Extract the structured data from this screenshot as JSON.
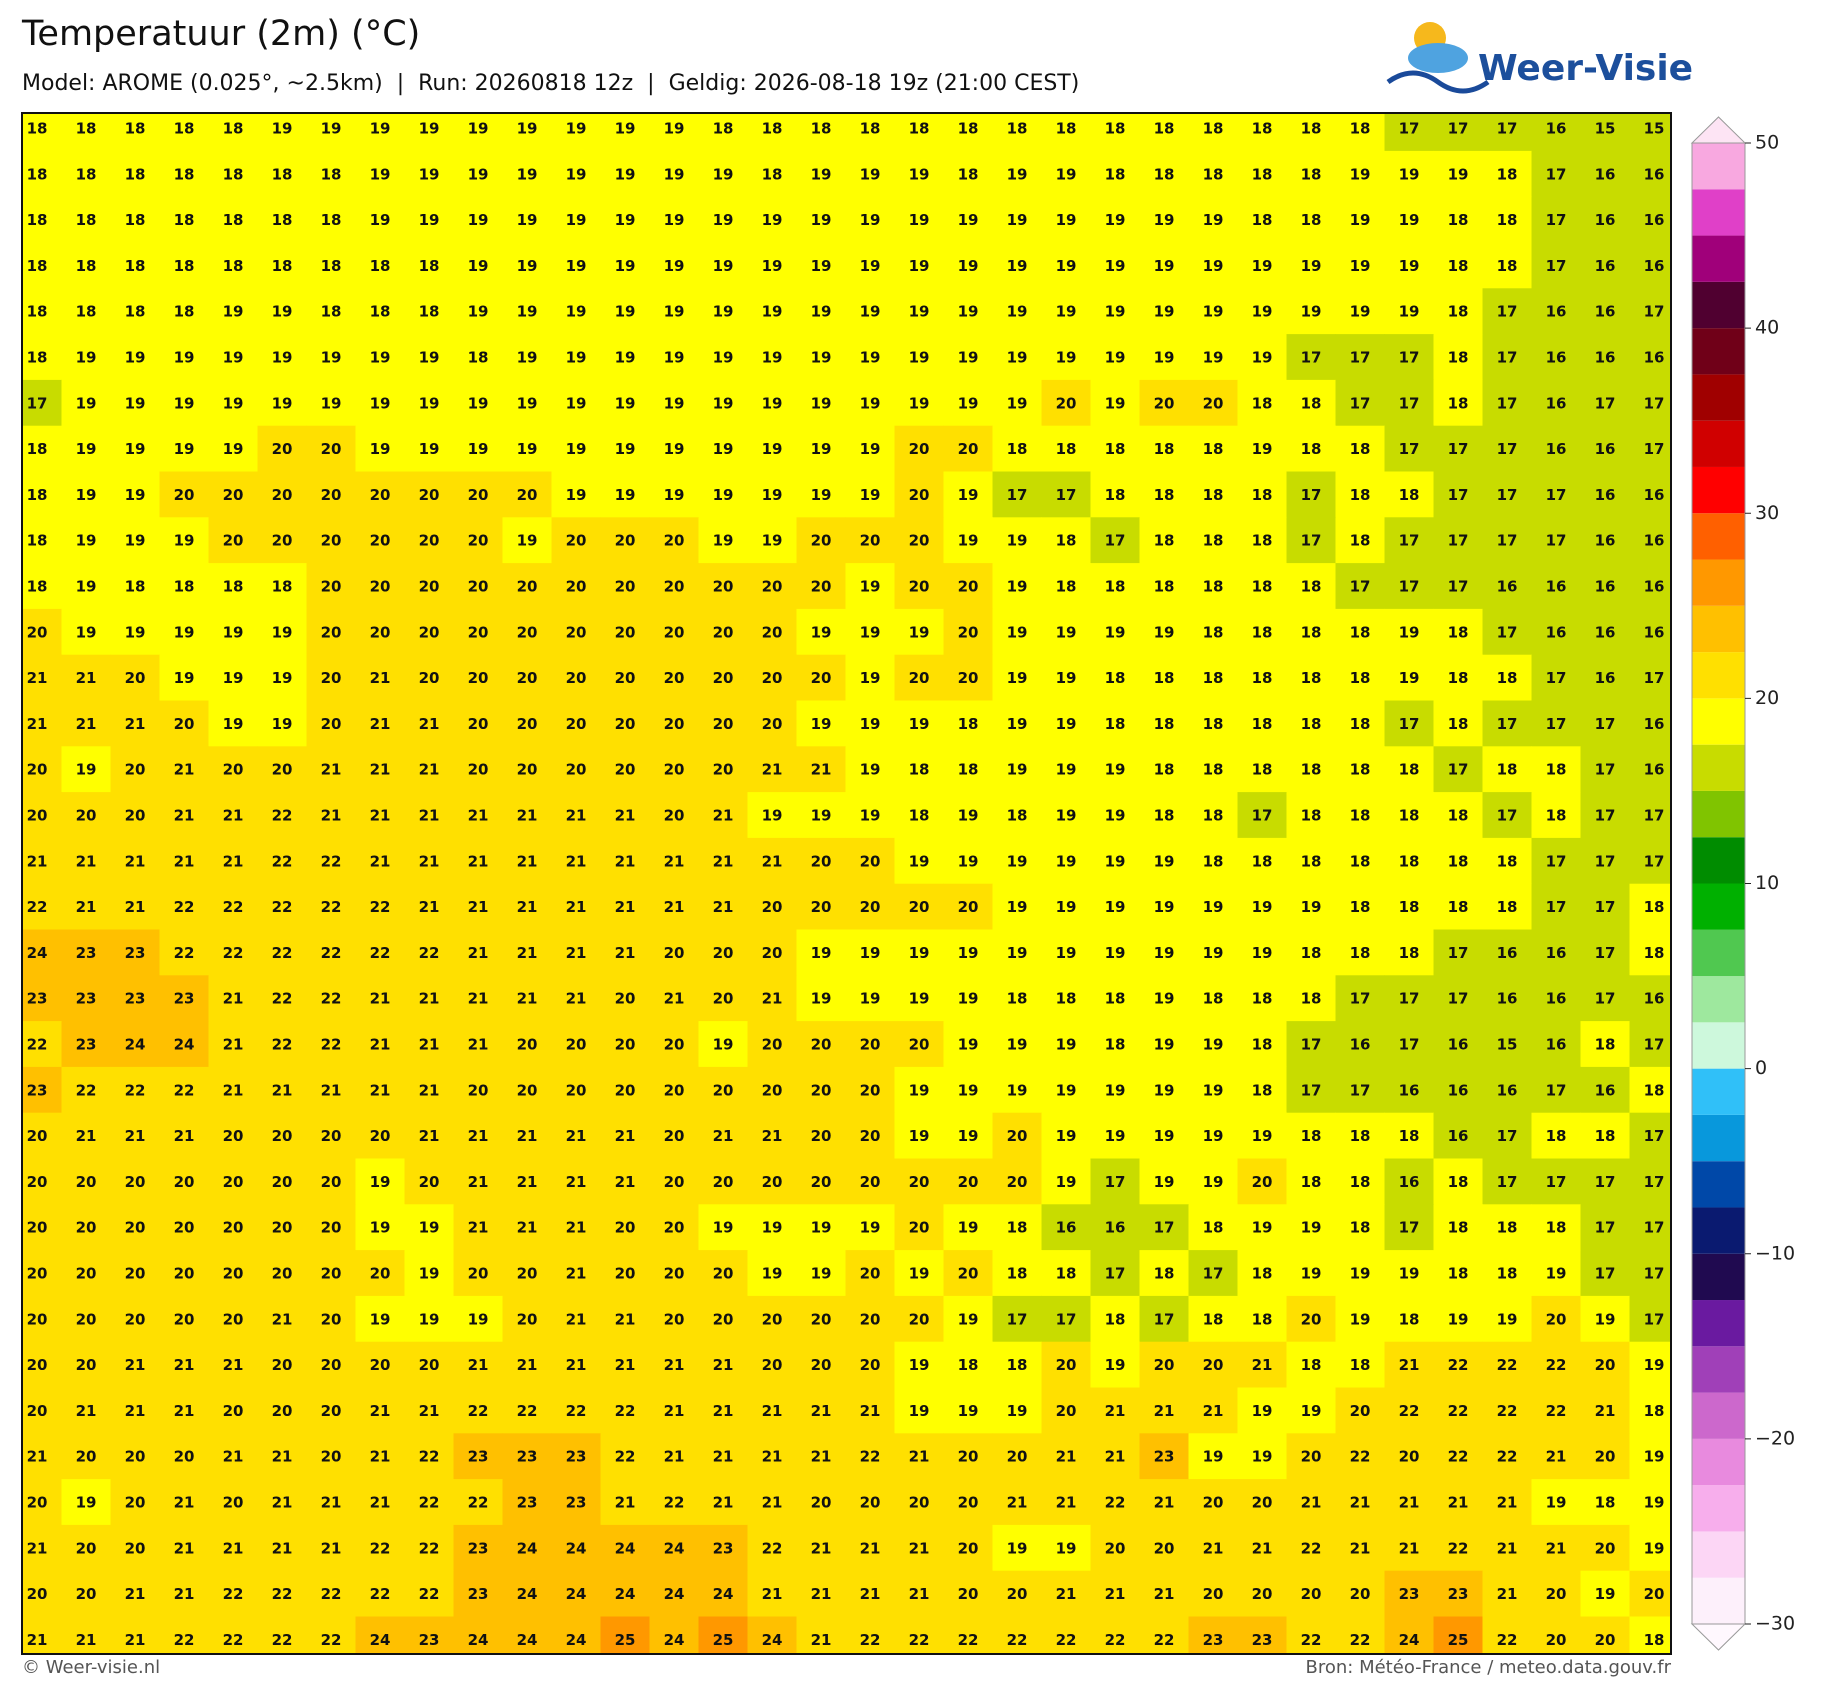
{
  "header": {
    "title": "Temperatuur (2m) (°C)",
    "subtitle": "Model: AROME (0.025°, ~2.5km)  |  Run: 20260818 12z  |  Geldig: 2026-08-18 19z (21:00 CEST)",
    "logo": "Weer-Visie"
  },
  "map": {
    "grid": [
      [
        18,
        18,
        18,
        18,
        18,
        19,
        19,
        19,
        19,
        19,
        19,
        19,
        19,
        19,
        18,
        18,
        18,
        18,
        18,
        18,
        18,
        18,
        18,
        18,
        18,
        18,
        18,
        18,
        17,
        17,
        17,
        16,
        15,
        15
      ],
      [
        18,
        18,
        18,
        18,
        18,
        18,
        18,
        19,
        19,
        19,
        19,
        19,
        19,
        19,
        19,
        18,
        19,
        19,
        19,
        18,
        19,
        19,
        18,
        18,
        18,
        18,
        18,
        19,
        19,
        19,
        18,
        17,
        16,
        16
      ],
      [
        18,
        18,
        18,
        18,
        18,
        18,
        18,
        19,
        19,
        19,
        19,
        19,
        19,
        19,
        19,
        19,
        19,
        19,
        19,
        19,
        19,
        19,
        19,
        19,
        19,
        18,
        18,
        19,
        19,
        18,
        18,
        17,
        16,
        16
      ],
      [
        18,
        18,
        18,
        18,
        18,
        18,
        18,
        18,
        18,
        19,
        19,
        19,
        19,
        19,
        19,
        19,
        19,
        19,
        19,
        19,
        19,
        19,
        19,
        19,
        19,
        19,
        19,
        19,
        19,
        18,
        18,
        17,
        16,
        16
      ],
      [
        18,
        18,
        18,
        18,
        19,
        19,
        18,
        18,
        18,
        19,
        19,
        19,
        19,
        19,
        19,
        19,
        19,
        19,
        19,
        19,
        19,
        19,
        19,
        19,
        19,
        19,
        19,
        19,
        19,
        18,
        17,
        16,
        16,
        17
      ],
      [
        18,
        19,
        19,
        19,
        19,
        19,
        19,
        19,
        19,
        18,
        19,
        19,
        19,
        19,
        19,
        19,
        19,
        19,
        19,
        19,
        19,
        19,
        19,
        19,
        19,
        19,
        17,
        17,
        17,
        18,
        17,
        16,
        16,
        16
      ],
      [
        17,
        19,
        19,
        19,
        19,
        19,
        19,
        19,
        19,
        19,
        19,
        19,
        19,
        19,
        19,
        19,
        19,
        19,
        19,
        19,
        19,
        20,
        19,
        20,
        20,
        18,
        18,
        17,
        17,
        18,
        17,
        16,
        17,
        17
      ],
      [
        18,
        19,
        19,
        19,
        19,
        20,
        20,
        19,
        19,
        19,
        19,
        19,
        19,
        19,
        19,
        19,
        19,
        19,
        20,
        20,
        18,
        18,
        18,
        18,
        18,
        19,
        18,
        18,
        17,
        17,
        17,
        16,
        16,
        17
      ],
      [
        18,
        19,
        19,
        20,
        20,
        20,
        20,
        20,
        20,
        20,
        20,
        19,
        19,
        19,
        19,
        19,
        19,
        19,
        20,
        19,
        17,
        17,
        18,
        18,
        18,
        18,
        17,
        18,
        18,
        17,
        17,
        17,
        16,
        16
      ],
      [
        18,
        19,
        19,
        19,
        20,
        20,
        20,
        20,
        20,
        20,
        19,
        20,
        20,
        20,
        19,
        19,
        20,
        20,
        20,
        19,
        19,
        18,
        17,
        18,
        18,
        18,
        17,
        18,
        17,
        17,
        17,
        17,
        16,
        16
      ],
      [
        18,
        19,
        18,
        18,
        18,
        18,
        20,
        20,
        20,
        20,
        20,
        20,
        20,
        20,
        20,
        20,
        20,
        19,
        20,
        20,
        19,
        18,
        18,
        18,
        18,
        18,
        18,
        17,
        17,
        17,
        16,
        16,
        16,
        16
      ],
      [
        20,
        19,
        19,
        19,
        19,
        19,
        20,
        20,
        20,
        20,
        20,
        20,
        20,
        20,
        20,
        20,
        19,
        19,
        19,
        20,
        19,
        19,
        19,
        19,
        18,
        18,
        18,
        18,
        19,
        18,
        17,
        16,
        16,
        16
      ],
      [
        21,
        21,
        20,
        19,
        19,
        19,
        20,
        21,
        20,
        20,
        20,
        20,
        20,
        20,
        20,
        20,
        20,
        19,
        20,
        20,
        19,
        19,
        18,
        18,
        18,
        18,
        18,
        18,
        19,
        18,
        18,
        17,
        16,
        17
      ],
      [
        21,
        21,
        21,
        20,
        19,
        19,
        20,
        21,
        21,
        20,
        20,
        20,
        20,
        20,
        20,
        20,
        19,
        19,
        19,
        18,
        19,
        19,
        18,
        18,
        18,
        18,
        18,
        18,
        17,
        18,
        17,
        17,
        17,
        16
      ],
      [
        20,
        19,
        20,
        21,
        20,
        20,
        21,
        21,
        21,
        20,
        20,
        20,
        20,
        20,
        20,
        21,
        21,
        19,
        18,
        18,
        19,
        19,
        19,
        18,
        18,
        18,
        18,
        18,
        18,
        17,
        18,
        18,
        17,
        16
      ],
      [
        20,
        20,
        20,
        21,
        21,
        22,
        21,
        21,
        21,
        21,
        21,
        21,
        21,
        20,
        21,
        19,
        19,
        19,
        18,
        19,
        18,
        19,
        19,
        18,
        18,
        17,
        18,
        18,
        18,
        18,
        17,
        18,
        17,
        17
      ],
      [
        21,
        21,
        21,
        21,
        21,
        22,
        22,
        21,
        21,
        21,
        21,
        21,
        21,
        21,
        21,
        21,
        20,
        20,
        19,
        19,
        19,
        19,
        19,
        19,
        18,
        18,
        18,
        18,
        18,
        18,
        18,
        17,
        17,
        17
      ],
      [
        22,
        21,
        21,
        22,
        22,
        22,
        22,
        22,
        21,
        21,
        21,
        21,
        21,
        21,
        21,
        20,
        20,
        20,
        20,
        20,
        19,
        19,
        19,
        19,
        19,
        19,
        19,
        18,
        18,
        18,
        18,
        17,
        17,
        18
      ],
      [
        24,
        23,
        23,
        22,
        22,
        22,
        22,
        22,
        22,
        21,
        21,
        21,
        21,
        20,
        20,
        20,
        19,
        19,
        19,
        19,
        19,
        19,
        19,
        19,
        19,
        19,
        18,
        18,
        18,
        17,
        16,
        16,
        17,
        18
      ],
      [
        23,
        23,
        23,
        23,
        21,
        22,
        22,
        21,
        21,
        21,
        21,
        21,
        20,
        21,
        20,
        21,
        19,
        19,
        19,
        19,
        18,
        18,
        18,
        19,
        18,
        18,
        18,
        17,
        17,
        17,
        16,
        16,
        17,
        16
      ],
      [
        22,
        23,
        24,
        24,
        21,
        22,
        22,
        21,
        21,
        21,
        20,
        20,
        20,
        20,
        19,
        20,
        20,
        20,
        20,
        19,
        19,
        19,
        18,
        19,
        19,
        18,
        17,
        16,
        17,
        16,
        15,
        16,
        18,
        17
      ],
      [
        23,
        22,
        22,
        22,
        21,
        21,
        21,
        21,
        21,
        20,
        20,
        20,
        20,
        20,
        20,
        20,
        20,
        20,
        19,
        19,
        19,
        19,
        19,
        19,
        19,
        18,
        17,
        17,
        16,
        16,
        16,
        17,
        16,
        18
      ],
      [
        20,
        21,
        21,
        21,
        20,
        20,
        20,
        20,
        21,
        21,
        21,
        21,
        21,
        20,
        21,
        21,
        20,
        20,
        19,
        19,
        20,
        19,
        19,
        19,
        19,
        19,
        18,
        18,
        18,
        16,
        17,
        18,
        18,
        17
      ],
      [
        20,
        20,
        20,
        20,
        20,
        20,
        20,
        19,
        20,
        21,
        21,
        21,
        21,
        20,
        20,
        20,
        20,
        20,
        20,
        20,
        20,
        19,
        17,
        19,
        19,
        20,
        18,
        18,
        16,
        18,
        17,
        17,
        17,
        17
      ],
      [
        20,
        20,
        20,
        20,
        20,
        20,
        20,
        19,
        19,
        21,
        21,
        21,
        20,
        20,
        19,
        19,
        19,
        19,
        20,
        19,
        18,
        16,
        16,
        17,
        18,
        19,
        19,
        18,
        17,
        18,
        18,
        18,
        17,
        17
      ],
      [
        20,
        20,
        20,
        20,
        20,
        20,
        20,
        20,
        19,
        20,
        20,
        21,
        20,
        20,
        20,
        19,
        19,
        20,
        19,
        20,
        18,
        18,
        17,
        18,
        17,
        18,
        19,
        19,
        19,
        18,
        18,
        19,
        17,
        17
      ],
      [
        20,
        20,
        20,
        20,
        20,
        21,
        20,
        19,
        19,
        19,
        20,
        21,
        21,
        20,
        20,
        20,
        20,
        20,
        20,
        19,
        17,
        17,
        18,
        17,
        18,
        18,
        20,
        19,
        18,
        19,
        19,
        20,
        19,
        17
      ],
      [
        20,
        20,
        21,
        21,
        21,
        20,
        20,
        20,
        20,
        21,
        21,
        21,
        21,
        21,
        21,
        20,
        20,
        20,
        19,
        18,
        18,
        20,
        19,
        20,
        20,
        21,
        18,
        18,
        21,
        22,
        22,
        22,
        20,
        19
      ],
      [
        20,
        21,
        21,
        21,
        20,
        20,
        20,
        21,
        21,
        22,
        22,
        22,
        22,
        21,
        21,
        21,
        21,
        21,
        19,
        19,
        19,
        20,
        21,
        21,
        21,
        19,
        19,
        20,
        22,
        22,
        22,
        22,
        21,
        18
      ],
      [
        21,
        20,
        20,
        20,
        21,
        21,
        20,
        21,
        22,
        23,
        23,
        23,
        22,
        21,
        21,
        21,
        21,
        22,
        21,
        20,
        20,
        21,
        21,
        23,
        19,
        19,
        20,
        22,
        20,
        22,
        22,
        21,
        20,
        19
      ],
      [
        20,
        19,
        20,
        21,
        20,
        21,
        21,
        21,
        22,
        22,
        23,
        23,
        21,
        22,
        21,
        21,
        20,
        20,
        20,
        20,
        21,
        21,
        22,
        21,
        20,
        20,
        21,
        21,
        21,
        21,
        21,
        19,
        18,
        19
      ],
      [
        21,
        20,
        20,
        21,
        21,
        21,
        21,
        22,
        22,
        23,
        24,
        24,
        24,
        24,
        23,
        22,
        21,
        21,
        21,
        20,
        19,
        19,
        20,
        20,
        21,
        21,
        22,
        21,
        21,
        22,
        21,
        21,
        20,
        19
      ],
      [
        20,
        20,
        21,
        21,
        22,
        22,
        22,
        22,
        22,
        23,
        24,
        24,
        24,
        24,
        24,
        21,
        21,
        21,
        21,
        20,
        20,
        21,
        21,
        21,
        20,
        20,
        20,
        20,
        23,
        23,
        21,
        20,
        19,
        20
      ],
      [
        21,
        21,
        21,
        22,
        22,
        22,
        22,
        24,
        23,
        24,
        24,
        24,
        25,
        24,
        25,
        24,
        21,
        22,
        22,
        22,
        22,
        22,
        22,
        22,
        23,
        23,
        22,
        22,
        24,
        25,
        22,
        20,
        20,
        18
      ]
    ]
  },
  "colorbar": {
    "range": [
      -30,
      50
    ],
    "ticks": [
      {
        "value": -30,
        "label": "−30"
      },
      {
        "value": -20,
        "label": "−20"
      },
      {
        "value": -10,
        "label": "−10"
      },
      0,
      10,
      20,
      30,
      40,
      50
    ],
    "colors": [
      "#fdf0fb",
      "#fcd6f5",
      "#f7aeec",
      "#e88ade",
      "#cc68cc",
      "#a040b8",
      "#6a1aa0",
      "#200a50",
      "#0a1a70",
      "#0048a8",
      "#0898dc",
      "#30c0f8",
      "#cdf8dc",
      "#9ee89e",
      "#50c850",
      "#00b000",
      "#008c00",
      "#80c400",
      "#c8dc00",
      "#ffff00",
      "#ffe000",
      "#ffc000",
      "#ff9800",
      "#ff6000",
      "#ff0000",
      "#d00000",
      "#a00000",
      "#700018",
      "#500030",
      "#a0007a",
      "#e040c8",
      "#f8a8e0"
    ]
  },
  "footer": {
    "left": "© Weer-visie.nl",
    "right": "Bron: Météo-France / meteo.data.gouv.fr"
  }
}
